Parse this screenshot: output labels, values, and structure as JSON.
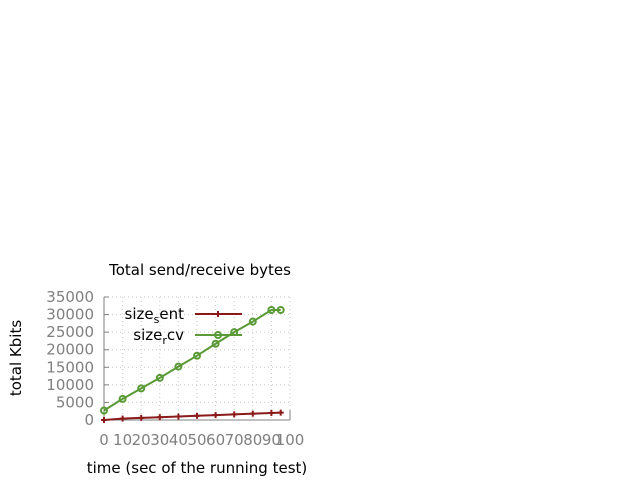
{
  "chart_data": {
    "type": "line",
    "title": "Total send/receive bytes",
    "xlabel": "time (sec of the running test)",
    "ylabel": "total Kbits",
    "xlim": [
      0,
      100
    ],
    "ylim": [
      0,
      35000
    ],
    "x_ticks": [
      "0",
      "10",
      "20",
      "30",
      "40",
      "50",
      "60",
      "70",
      "80",
      "90",
      "100"
    ],
    "y_ticks": [
      "0",
      "5000",
      "10000",
      "15000",
      "20000",
      "25000",
      "30000",
      "35000"
    ],
    "grid": true,
    "legend_position": "top-left",
    "series": [
      {
        "name_main": "size",
        "name_sub": "s",
        "name_rest": "ent",
        "name": "size_sent",
        "color": "#8b1a1a",
        "marker": "plus",
        "x": [
          0,
          10,
          20,
          30,
          40,
          50,
          60,
          70,
          80,
          90,
          95
        ],
        "y": [
          0,
          400,
          600,
          800,
          1000,
          1200,
          1400,
          1600,
          1800,
          2000,
          2100
        ]
      },
      {
        "name_main": "size",
        "name_sub": "r",
        "name_rest": "cv",
        "name": "size_rcv",
        "color": "#5a9a36",
        "marker": "circle",
        "x": [
          0,
          10,
          20,
          30,
          40,
          50,
          60,
          70,
          80,
          90,
          95
        ],
        "y": [
          2700,
          6000,
          9000,
          12000,
          15200,
          18300,
          21700,
          25000,
          28000,
          31300,
          31300
        ]
      }
    ]
  }
}
